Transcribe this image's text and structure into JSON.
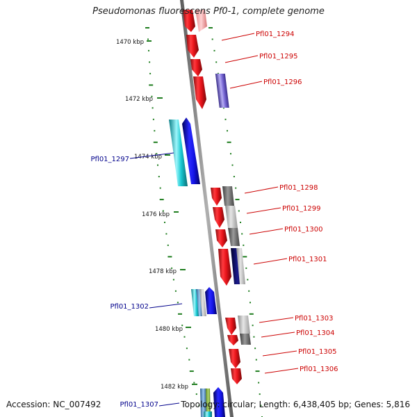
{
  "title": "Pseudomonas fluorescens Pf0-1, complete genome",
  "footer": {
    "accession": "Accession: NC_007492",
    "summary": "Topology: circular; Length: 6,438,405 bp; Genes: 5,816"
  },
  "colors": {
    "backbone": "#7d7d7d",
    "tick": "#1e7d1e",
    "right_label": "#cc0000",
    "left_label": "#00008b",
    "cds_red": "#e8141a",
    "cds_blue": "#1414e6",
    "cds_cyan": "#19c8d2",
    "cds_purple": "#7a6ad6",
    "cds_gray": "#808080"
  },
  "kbp_ticks": [
    "1470 kbp",
    "1472 kbp",
    "1474 kbp",
    "1476 kbp",
    "1478 kbp",
    "1480 kbp",
    "1482 kbp"
  ],
  "gene_labels_right": [
    "Pfl01_1294",
    "Pfl01_1295",
    "Pfl01_1296",
    "Pfl01_1298",
    "Pfl01_1299",
    "Pfl01_1300",
    "Pfl01_1301",
    "Pfl01_1303",
    "Pfl01_1304",
    "Pfl01_1305",
    "Pfl01_1306"
  ],
  "gene_labels_left": [
    "Pfl01_1297",
    "Pfl01_1302",
    "Pfl01_1307"
  ]
}
